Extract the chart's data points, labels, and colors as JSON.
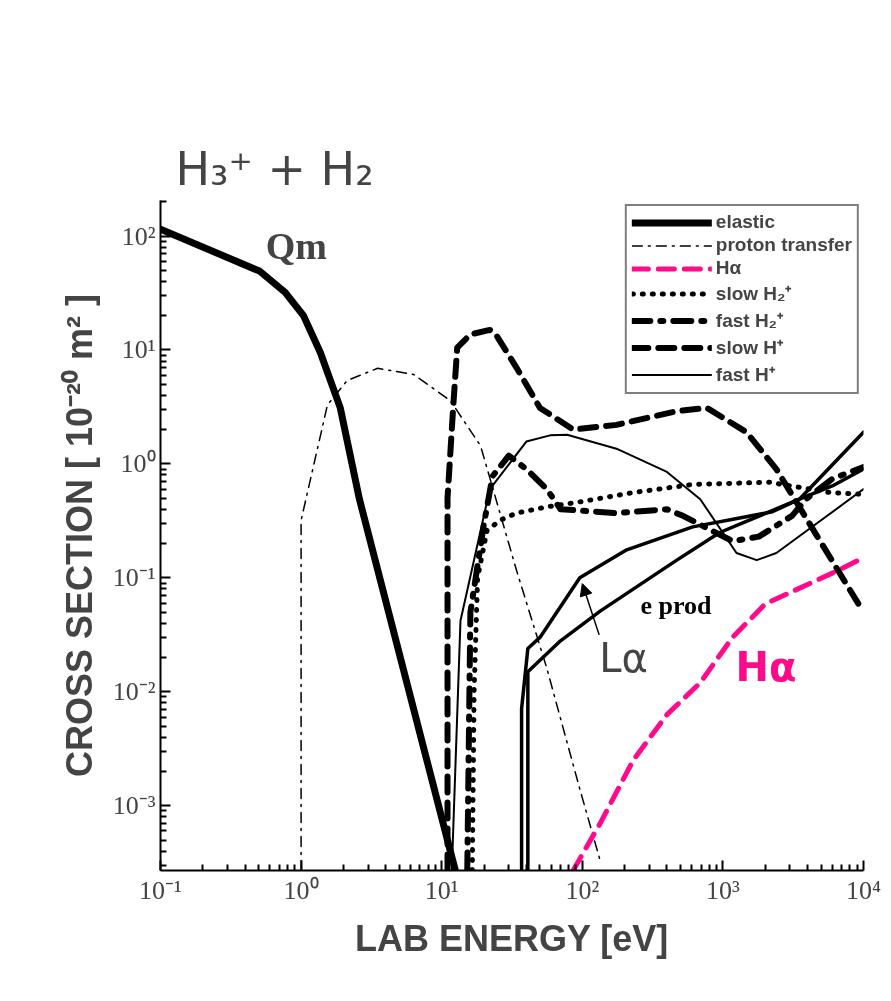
{
  "chart_data": {
    "type": "line",
    "title": "H₃⁺ + H₂",
    "xlabel": "LAB ENERGY [eV]",
    "ylabel": "CROSS SECTION [ 10⁻²⁰ m² ]",
    "log": "xy",
    "xlim": [
      0.1,
      10000
    ],
    "ylim": [
      0.00027,
      205
    ],
    "xticks": [
      {
        "value": 0.1,
        "label": "10⁻¹"
      },
      {
        "value": 1,
        "label": "10⁰"
      },
      {
        "value": 10,
        "label": "10¹"
      },
      {
        "value": 100,
        "label": "10²"
      },
      {
        "value": 1000,
        "label": "10³"
      },
      {
        "value": 10000,
        "label": "10⁴"
      }
    ],
    "yticks": [
      {
        "value": 0.001,
        "label": "10⁻³"
      },
      {
        "value": 0.01,
        "label": "10⁻²"
      },
      {
        "value": 0.1,
        "label": "10⁻¹"
      },
      {
        "value": 1,
        "label": "10⁰"
      },
      {
        "value": 10,
        "label": "10¹"
      },
      {
        "value": 100,
        "label": "10²"
      }
    ],
    "grid": false,
    "legend": "top right",
    "series": [
      {
        "name": "elastic",
        "color": "#000000",
        "line_style": "solid",
        "x": [
          0.1,
          0.51,
          0.77,
          1.04,
          1.37,
          1.9,
          2.6,
          12.5
        ],
        "values": [
          115,
          49,
          32,
          20,
          9.5,
          3.1,
          0.49,
          0.00027
        ]
      },
      {
        "name": "proton transfer",
        "color": "#000000",
        "line_style": "dashdot",
        "x": [
          1,
          1,
          1.54,
          2.13,
          3.5,
          6.3,
          11.5,
          18.9,
          34,
          56,
          96,
          134
        ],
        "values": [
          0.00027,
          0.32,
          3.3,
          5.4,
          6.9,
          6.1,
          3.6,
          1.44,
          0.117,
          0.016,
          0.0014,
          0.00033
        ]
      },
      {
        "name": "Hα",
        "color": "#ff0a8a",
        "line_style": "dashed",
        "x": [
          86,
          134,
          230,
          400,
          690,
          1170,
          2000,
          6000,
          10000
        ],
        "values": [
          0.00027,
          0.0007,
          0.0025,
          0.0063,
          0.012,
          0.03,
          0.059,
          0.11,
          0.15
        ]
      },
      {
        "name": "slow H₂⁺",
        "color": "#000000",
        "line_style": "dotted",
        "x": [
          16.5,
          17,
          18,
          21,
          26,
          34,
          56,
          92,
          230,
          610,
          2150,
          5800,
          10000
        ],
        "values": [
          0.00027,
          0.01,
          0.1,
          0.26,
          0.32,
          0.37,
          0.42,
          0.46,
          0.56,
          0.66,
          0.69,
          0.56,
          0.54
        ]
      },
      {
        "name": "fast H₂⁺",
        "color": "#000000",
        "line_style": "dashdotted",
        "x": [
          15.2,
          16,
          20,
          23,
          30,
          40,
          56,
          70,
          175,
          400,
          520,
          1170,
          1800,
          3100,
          3900,
          6000,
          10000
        ],
        "values": [
          0.00027,
          0.05,
          0.3,
          0.78,
          1.18,
          0.9,
          0.6,
          0.4,
          0.37,
          0.4,
          0.35,
          0.21,
          0.23,
          0.35,
          0.49,
          0.74,
          0.94
        ]
      },
      {
        "name": "slow H⁺",
        "color": "#000000",
        "line_style": "dashed",
        "x": [
          11,
          11,
          12.1,
          12.9,
          16,
          22,
          24,
          34,
          50,
          86,
          175,
          470,
          770,
          1470,
          2400,
          4700,
          10000
        ],
        "values": [
          0.00027,
          0.5,
          3.3,
          10.5,
          13.7,
          15,
          14,
          7,
          3.1,
          2,
          2.2,
          2.9,
          3.1,
          1.9,
          0.9,
          0.23,
          0.05
        ]
      },
      {
        "name": "fast H⁺",
        "color": "#000000",
        "line_style": "solid",
        "x": [
          11.8,
          13.6,
          22,
          40,
          59,
          78,
          175,
          400,
          690,
          1250,
          1740,
          2400,
          10000
        ],
        "values": [
          0.00027,
          0.042,
          0.6,
          1.57,
          1.78,
          1.8,
          1.36,
          0.85,
          0.49,
          0.165,
          0.143,
          0.165,
          0.6
        ]
      },
      {
        "color": "#000000",
        "line_style": "solid",
        "x": [
          37,
          37,
          41,
          50,
          96,
          207,
          610,
          2250,
          3500,
          6000,
          10000
        ],
        "values": [
          0.00027,
          0.0071,
          0.024,
          0.03,
          0.1,
          0.176,
          0.28,
          0.38,
          0.49,
          0.64,
          0.9
        ]
      },
      {
        "color": "#000000",
        "line_style": "solid",
        "x": [
          41,
          41,
          70,
          134,
          470,
          950,
          3500,
          10000
        ],
        "values": [
          0.00027,
          0.015,
          0.028,
          0.051,
          0.143,
          0.25,
          0.49,
          1.9
        ]
      }
    ],
    "annotations": [
      {
        "text": "Qm",
        "x": 0.56,
        "y": 54
      },
      "e prod",
      {
        "text": "Lα",
        "x": 100,
        "y": 0.089
      },
      "Hα"
    ]
  }
}
